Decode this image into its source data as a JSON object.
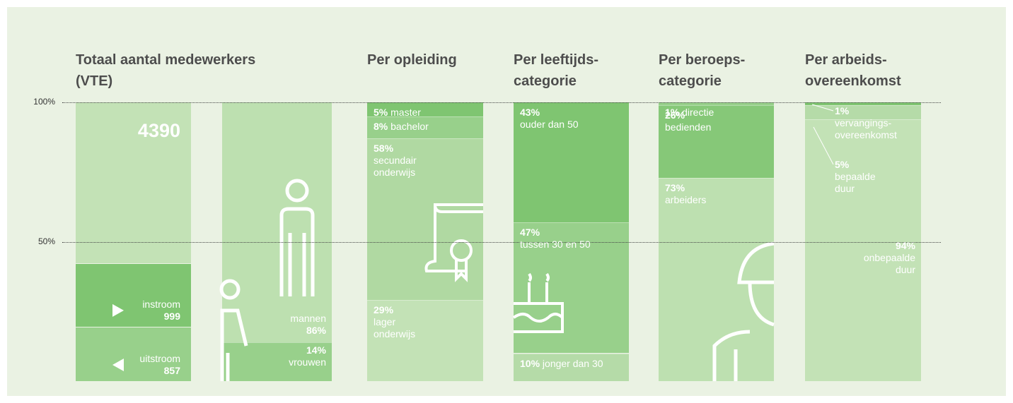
{
  "chart_data": {
    "type": "stacked-column",
    "ylim": [
      0,
      100
    ],
    "yticks": [
      {
        "value": 50,
        "label": "50%"
      },
      {
        "value": 100,
        "label": "100%"
      }
    ],
    "headcount": {
      "title_lines": [
        "Totaal aantal medewerkers",
        "(VTE)"
      ],
      "total": 4390,
      "color": "#c3e2b6",
      "flows": [
        {
          "name": "instroom",
          "value": 999,
          "color": "#7fc571"
        },
        {
          "name": "uitstroom",
          "value": 857,
          "color": "#98d08b"
        }
      ]
    },
    "columns": [
      {
        "segments": [
          {
            "name_lines": [
              "mannen"
            ],
            "value": 86,
            "value_label": "86%",
            "color": "#bde0b0"
          },
          {
            "name_lines": [
              "vrouwen"
            ],
            "value": 14,
            "value_label": "14%",
            "color": "#98d08b"
          }
        ]
      },
      {
        "title_lines": [
          "Per opleiding"
        ],
        "segments": [
          {
            "name_lines": [
              "master"
            ],
            "value": 5,
            "value_label": "5%",
            "color": "#7fc571"
          },
          {
            "name_lines": [
              "bachelor"
            ],
            "value": 8,
            "value_label": "8%",
            "color": "#98d08b"
          },
          {
            "name_lines": [
              "secundair",
              "onderwijs"
            ],
            "value": 58,
            "value_label": "58%",
            "color": "#b0d9a2"
          },
          {
            "name_lines": [
              "lager",
              "onderwijs"
            ],
            "value": 29,
            "value_label": "29%",
            "color": "#c3e2b6"
          }
        ]
      },
      {
        "title_lines": [
          "Per leeftijds-",
          "categorie"
        ],
        "segments": [
          {
            "name_lines": [
              "ouder dan 50"
            ],
            "value": 43,
            "value_label": "43%",
            "color": "#7fc571"
          },
          {
            "name_lines": [
              "tussen 30 en 50"
            ],
            "value": 47,
            "value_label": "47%",
            "color": "#98d08b"
          },
          {
            "name_lines": [
              "jonger dan 30"
            ],
            "value": 10,
            "value_label": "10%",
            "color": "#b5dba8"
          }
        ]
      },
      {
        "title_lines": [
          "Per beroeps-",
          "categorie"
        ],
        "segments": [
          {
            "name_lines": [
              "directie"
            ],
            "value": 1,
            "value_label": "1%",
            "color": "#98d08b"
          },
          {
            "name_lines": [
              "bedienden"
            ],
            "value": 26,
            "value_label": "26%",
            "color": "#86c878"
          },
          {
            "name_lines": [
              "arbeiders"
            ],
            "value": 73,
            "value_label": "73%",
            "color": "#bde0b0"
          }
        ]
      },
      {
        "title_lines": [
          "Per arbeids-",
          "overeenkomst"
        ],
        "segments": [
          {
            "name_lines": [
              "vervangings-",
              "overeenkomst"
            ],
            "value": 1,
            "value_label": "1%",
            "color": "#7fc571"
          },
          {
            "name_lines": [
              "bepaalde",
              "duur"
            ],
            "value": 5,
            "value_label": "5%",
            "color": "#b5dba8"
          },
          {
            "name_lines": [
              "onbepaalde",
              "duur"
            ],
            "value": 94,
            "value_label": "94%",
            "color": "#c3e2b6"
          }
        ]
      }
    ]
  }
}
